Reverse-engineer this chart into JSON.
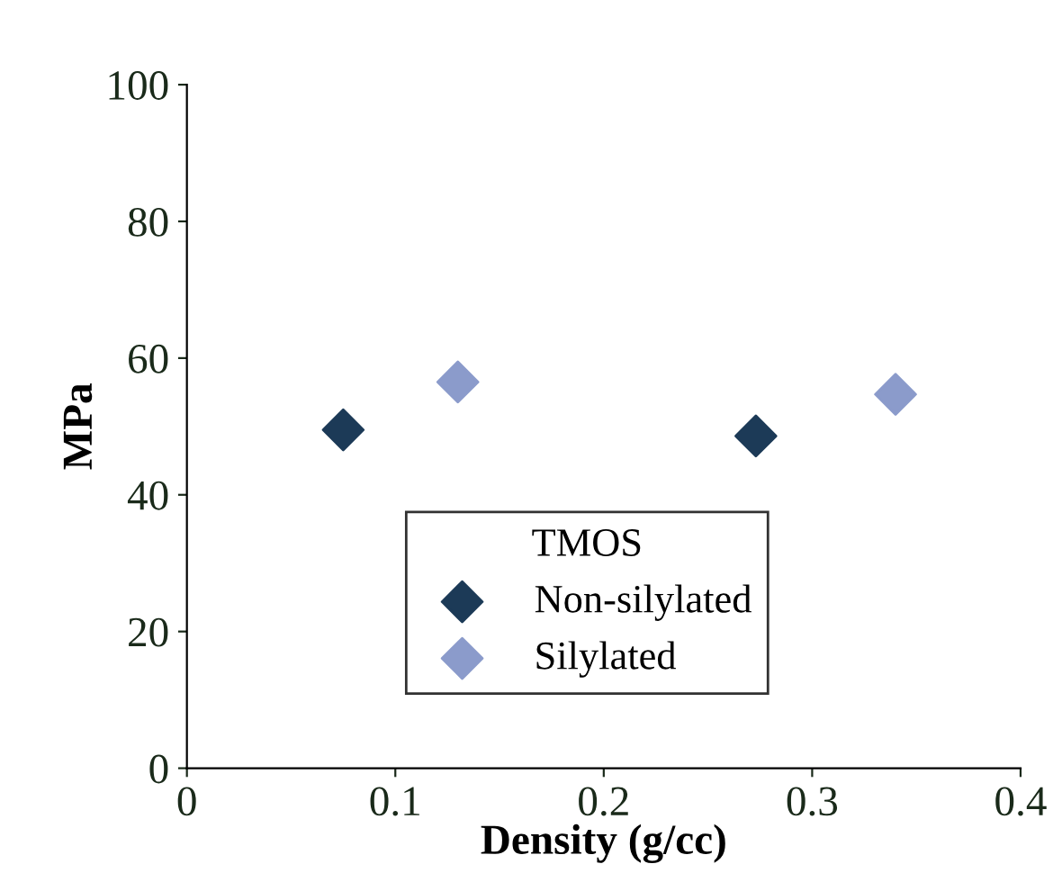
{
  "chart_data": {
    "type": "scatter",
    "xlabel": "Density (g/cc)",
    "ylabel": "MPa",
    "legend_title": "TMOS",
    "series": [
      {
        "name": "Non-silylated",
        "color": "#1c3a57",
        "x": [
          0.075,
          0.273
        ],
        "values": [
          49.5,
          48.6
        ]
      },
      {
        "name": "Silylated",
        "color": "#8b9bcb",
        "x": [
          0.13,
          0.34
        ],
        "values": [
          56.5,
          54.7
        ]
      }
    ],
    "xlim": [
      0,
      0.4
    ],
    "xticks": [
      0,
      0.1,
      0.2,
      0.3,
      0.4
    ],
    "ylim": [
      0,
      100
    ],
    "yticks": [
      0,
      20,
      40,
      60,
      80,
      100
    ],
    "marker": "diamond",
    "legend": "bottom",
    "grid": false
  }
}
